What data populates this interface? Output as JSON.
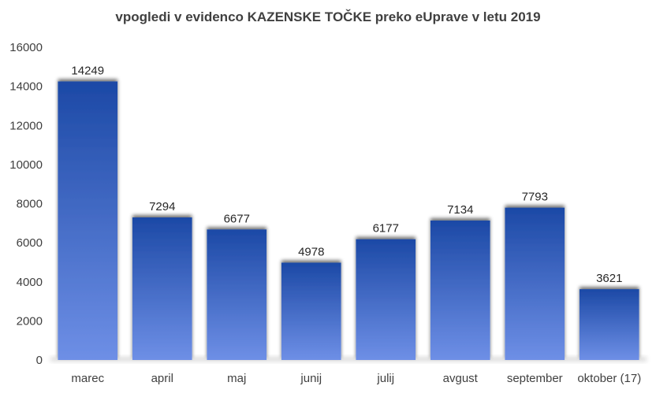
{
  "chart_data": {
    "type": "bar",
    "title": "vpogledi v evidenco KAZENSKE TOČKE preko eUprave v letu 2019",
    "categories": [
      "marec",
      "april",
      "maj",
      "junij",
      "julij",
      "avgust",
      "september",
      "oktober (17)"
    ],
    "values": [
      14249,
      7294,
      6677,
      4978,
      6177,
      7134,
      7793,
      3621
    ],
    "xlabel": "",
    "ylabel": "",
    "ylim": [
      0,
      16000
    ],
    "yticks": [
      "0",
      "2000",
      "4000",
      "6000",
      "8000",
      "10000",
      "12000",
      "14000",
      "16000"
    ],
    "grid": false,
    "legend": "none",
    "bar_color_top": "#1c49a6",
    "bar_color_bottom": "#6e8fe6"
  }
}
